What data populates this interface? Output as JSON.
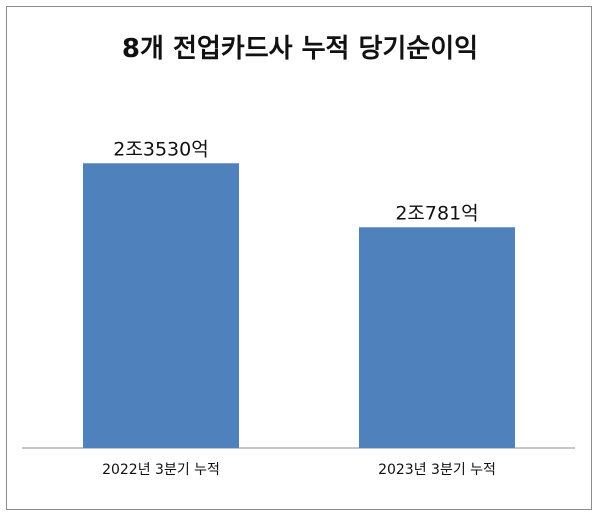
{
  "chart_data": {
    "type": "bar",
    "title": "8개 전업카드사 누적 당기순이익",
    "categories": [
      "2022년 3분기 누적",
      "2023년 3분기 누적"
    ],
    "values": [
      2.353,
      2.0781
    ],
    "value_unit": "조원",
    "data_labels": [
      "2조3530억",
      "2조781억"
    ],
    "bar_color": "#4f81bd",
    "ylim": [
      1.13,
      2.41
    ],
    "grid": false,
    "legend": "none"
  }
}
